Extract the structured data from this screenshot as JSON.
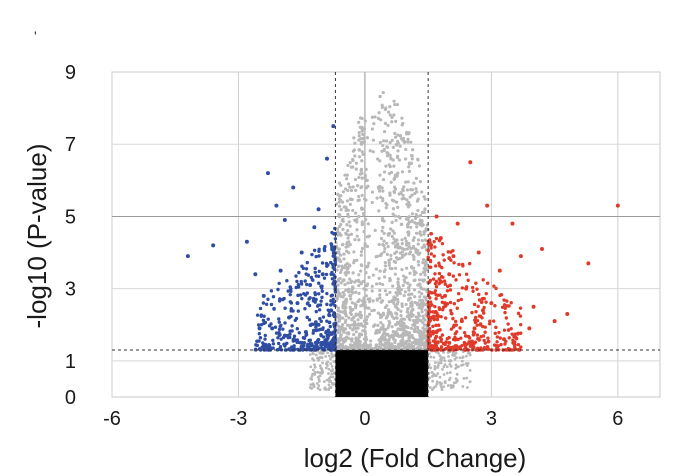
{
  "chart_data": {
    "type": "scatter",
    "title": "",
    "xlabel": "log2 (Fold Change)",
    "ylabel": "-log10 (P-value)",
    "xlim": [
      -6,
      7
    ],
    "ylim": [
      0,
      9
    ],
    "x_ticks": [
      "-6",
      "-3",
      "0",
      "3",
      "6"
    ],
    "y_ticks": [
      "0",
      "1",
      "3",
      "5",
      "7",
      "9"
    ],
    "grid": true,
    "legend": "none",
    "thresholds": {
      "fold_change_low": -0.7,
      "fold_change_high": 1.5,
      "p_value_line": 1.3
    },
    "colors": {
      "down_regulated": "#2f4ea3",
      "up_regulated": "#e03a2a",
      "not_significant_fold": "#b8b8b8",
      "not_significant_p": "#000000"
    },
    "series": [
      {
        "color_key": "down_regulated",
        "points": [
          [
            -4.2,
            3.9
          ],
          [
            -3.6,
            4.2
          ],
          [
            -2.8,
            4.3
          ],
          [
            -2.3,
            6.2
          ],
          [
            -2.1,
            5.3
          ],
          [
            -1.9,
            4.9
          ],
          [
            -1.7,
            5.8
          ],
          [
            -2.0,
            3.5
          ],
          [
            -2.4,
            2.8
          ],
          [
            -2.6,
            3.4
          ],
          [
            -1.5,
            4.0
          ],
          [
            -1.2,
            4.7
          ],
          [
            -1.1,
            5.2
          ],
          [
            -0.9,
            6.6
          ],
          [
            -1.0,
            3.4
          ],
          [
            -1.3,
            3.1
          ],
          [
            -1.6,
            2.6
          ],
          [
            -1.8,
            2.2
          ],
          [
            -2.2,
            1.9
          ],
          [
            -1.4,
            1.8
          ],
          [
            -1.1,
            2.0
          ],
          [
            -0.8,
            2.4
          ],
          [
            -0.9,
            1.6
          ],
          [
            -1.2,
            1.4
          ],
          [
            -1.5,
            1.5
          ],
          [
            -1.9,
            1.7
          ],
          [
            -2.5,
            1.9
          ],
          [
            -0.8,
            1.3
          ],
          [
            -1.0,
            1.5
          ],
          [
            -0.75,
            7.5
          ]
        ]
      },
      {
        "color_key": "up_regulated",
        "points": [
          [
            1.6,
            2.2
          ],
          [
            1.7,
            5.0
          ],
          [
            1.8,
            4.4
          ],
          [
            1.9,
            2.8
          ],
          [
            2.0,
            3.4
          ],
          [
            2.2,
            4.8
          ],
          [
            2.4,
            3.0
          ],
          [
            2.5,
            6.5
          ],
          [
            2.7,
            4.0
          ],
          [
            2.9,
            5.3
          ],
          [
            3.0,
            2.6
          ],
          [
            3.2,
            3.5
          ],
          [
            3.5,
            4.8
          ],
          [
            3.7,
            3.9
          ],
          [
            4.0,
            2.5
          ],
          [
            4.2,
            4.1
          ],
          [
            4.5,
            2.1
          ],
          [
            4.8,
            2.3
          ],
          [
            5.3,
            3.7
          ],
          [
            6.0,
            5.3
          ],
          [
            2.0,
            1.5
          ],
          [
            1.7,
            1.8
          ],
          [
            2.6,
            1.9
          ],
          [
            3.3,
            1.6
          ],
          [
            1.9,
            2.6
          ],
          [
            2.3,
            2.1
          ],
          [
            2.8,
            2.4
          ],
          [
            3.9,
            1.9
          ],
          [
            1.6,
            1.4
          ],
          [
            2.1,
            3.9
          ]
        ]
      }
    ],
    "not_significant_region": {
      "x_range": [
        -0.7,
        1.5
      ],
      "gray_above_y": 1.3,
      "gray_max_y": 8.5,
      "black_below_y": 1.3
    }
  },
  "stray_mark": "'"
}
